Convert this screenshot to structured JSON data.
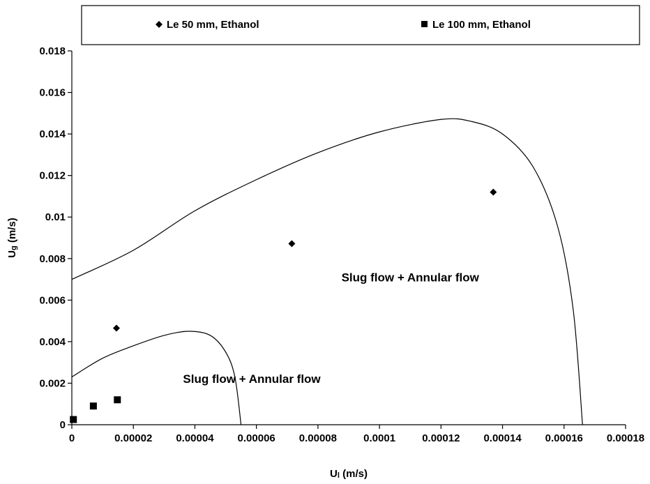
{
  "chart_data": {
    "type": "scatter",
    "title": "",
    "xlabel": {
      "main": "U",
      "sub": "l",
      "unit": " (m/s)"
    },
    "ylabel": {
      "main": "U",
      "sub": "g",
      "unit": " (m/s)"
    },
    "xlim": [
      0,
      0.00018
    ],
    "ylim": [
      0,
      0.018
    ],
    "x_ticks": [
      "0",
      "0.00002",
      "0.00004",
      "0.00006",
      "0.00008",
      "0.0001",
      "0.00012",
      "0.00014",
      "0.00016",
      "0.00018"
    ],
    "y_ticks": [
      "0",
      "0.002",
      "0.004",
      "0.006",
      "0.008",
      "0.01",
      "0.012",
      "0.014",
      "0.016",
      "0.018"
    ],
    "grid": false,
    "legend": {
      "placement": "top",
      "boxed": true
    },
    "series": [
      {
        "name": "Le 50 mm, Ethanol",
        "marker": "diamond",
        "color": "#000000",
        "points": [
          {
            "x": 1.45e-05,
            "y": 0.00465
          },
          {
            "x": 7.15e-05,
            "y": 0.00872
          },
          {
            "x": 0.000137,
            "y": 0.0112
          }
        ]
      },
      {
        "name": "Le 100 mm, Ethanol",
        "marker": "square",
        "color": "#000000",
        "points": [
          {
            "x": 5e-07,
            "y": 0.00025
          },
          {
            "x": 7e-06,
            "y": 0.0009
          },
          {
            "x": 1.48e-05,
            "y": 0.0012
          }
        ]
      }
    ],
    "boundaries": [
      {
        "points": [
          {
            "x": 0,
            "y": 0.0023
          },
          {
            "x": 1e-05,
            "y": 0.0032
          },
          {
            "x": 2e-05,
            "y": 0.0038
          },
          {
            "x": 3e-05,
            "y": 0.0043
          },
          {
            "x": 3.8e-05,
            "y": 0.0045
          },
          {
            "x": 4.5e-05,
            "y": 0.0043
          },
          {
            "x": 5e-05,
            "y": 0.0035
          },
          {
            "x": 5.3e-05,
            "y": 0.0023
          },
          {
            "x": 5.5e-05,
            "y": 0.0
          }
        ]
      },
      {
        "points": [
          {
            "x": 0,
            "y": 0.007
          },
          {
            "x": 2e-05,
            "y": 0.0084
          },
          {
            "x": 4e-05,
            "y": 0.0103
          },
          {
            "x": 6e-05,
            "y": 0.0118
          },
          {
            "x": 8e-05,
            "y": 0.0131
          },
          {
            "x": 0.0001,
            "y": 0.0141
          },
          {
            "x": 0.00012,
            "y": 0.0147
          },
          {
            "x": 0.00013,
            "y": 0.0146
          },
          {
            "x": 0.00014,
            "y": 0.014
          },
          {
            "x": 0.00015,
            "y": 0.0124
          },
          {
            "x": 0.000158,
            "y": 0.0095
          },
          {
            "x": 0.000163,
            "y": 0.0055
          },
          {
            "x": 0.000166,
            "y": 0.0
          }
        ]
      }
    ],
    "annotations": [
      {
        "text": "Slug flow + Annular flow",
        "x": 5.85e-05,
        "y": 0.00222
      },
      {
        "text": "Slug flow + Annular flow",
        "x": 0.00011,
        "y": 0.0071
      }
    ]
  }
}
